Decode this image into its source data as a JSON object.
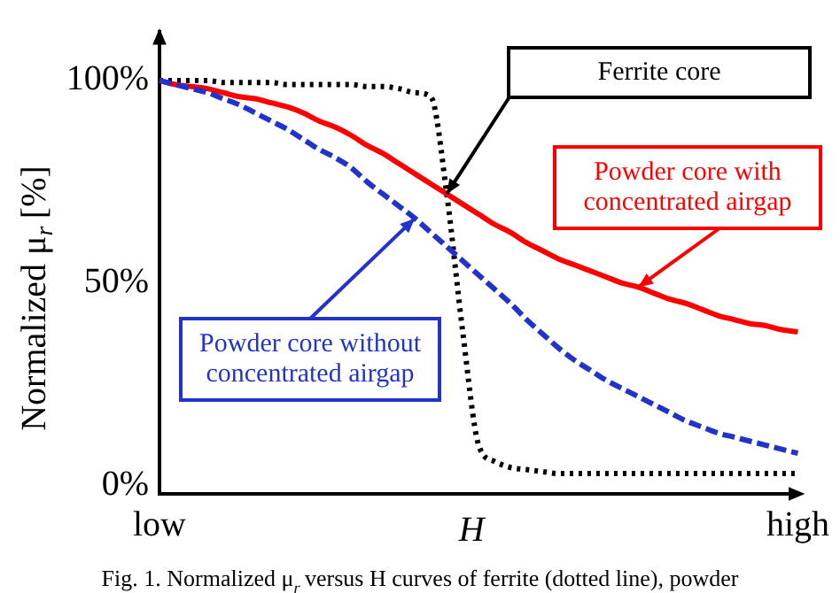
{
  "chart_data": {
    "type": "line",
    "xlabel": "H",
    "ylabel": "Normalized μ$_{r}$ [%]",
    "categories": [
      "low",
      null,
      null,
      null,
      null,
      null,
      null,
      null,
      null,
      null,
      null,
      null,
      null,
      null,
      null,
      null,
      null,
      null,
      null,
      null,
      null,
      null,
      null,
      null,
      null,
      null,
      null,
      null,
      null,
      null,
      null,
      null,
      null,
      null,
      null,
      null,
      null,
      null,
      null,
      null,
      "high"
    ],
    "ylim": [
      -2,
      112
    ],
    "yticks": [
      {
        "value": 0,
        "label": "0%"
      },
      {
        "value": 50,
        "label": "50%"
      },
      {
        "value": 100,
        "label": "100%"
      }
    ],
    "grid": false,
    "legend": false,
    "marker": "none",
    "series": [
      {
        "name": "Ferrite core",
        "color": "#000000",
        "line_style": "dotted",
        "values": [
          100,
          100,
          100,
          100,
          99.5,
          99.5,
          99.5,
          99.5,
          99,
          99,
          99,
          99,
          99,
          98.5,
          98.5,
          98,
          97,
          96,
          72,
          38,
          10,
          6,
          4.5,
          4,
          3.5,
          3,
          3,
          3,
          3,
          3,
          3,
          3,
          3,
          3,
          3,
          3,
          3,
          3,
          3,
          3,
          3
        ]
      },
      {
        "name": "Powder core with concentrated airgap",
        "color": "#ff0000",
        "line_style": "solid",
        "values": [
          100,
          99,
          98.5,
          98,
          97,
          96,
          95.5,
          94.5,
          93.5,
          92,
          90,
          88.5,
          86.5,
          84,
          82,
          79.5,
          77,
          74.5,
          72,
          69.5,
          67,
          64.5,
          62.5,
          60,
          58,
          56,
          54.5,
          53,
          51.5,
          50,
          49,
          47.5,
          46,
          45,
          43.5,
          42,
          41,
          40,
          39.5,
          38.5,
          38
        ]
      },
      {
        "name": "Powder core without concentrated airgap",
        "color": "#2233cc",
        "line_style": "dashed",
        "values": [
          100,
          99,
          98,
          97,
          95.5,
          94,
          92,
          90,
          88,
          85.5,
          83,
          81,
          78.5,
          75,
          72,
          69,
          66,
          62.5,
          59,
          55.5,
          52,
          48.5,
          45,
          41,
          37.5,
          34,
          31,
          28.5,
          26,
          24,
          22,
          20,
          18,
          16,
          14.5,
          13,
          12,
          11,
          10,
          9,
          8
        ]
      }
    ],
    "annotations": [
      "Fig. 1. Normalized μ$_{r}$ versus H curves of ferrite (dotted line), powder"
    ]
  }
}
